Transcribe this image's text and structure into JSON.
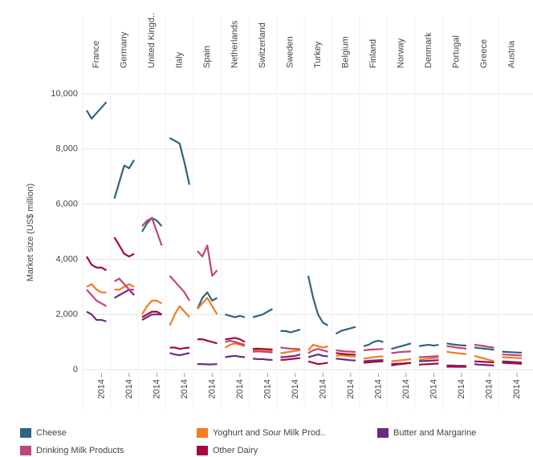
{
  "chart_data": {
    "type": "line",
    "y_label": "Market size (US$ million)",
    "categories": [
      "France",
      "Germany",
      "United Kingd..",
      "Italy",
      "Spain",
      "Netherlands",
      "Switzerland",
      "Sweden",
      "Turkey",
      "Belgium",
      "Finland",
      "Norway",
      "Denmark",
      "Portugal",
      "Greece",
      "Austria"
    ],
    "x": [
      2011,
      2012,
      2013,
      2014,
      2015
    ],
    "xlim": [
      2011,
      2015
    ],
    "xticks": [
      2014
    ],
    "ylim": [
      0,
      10000
    ],
    "yticks": [
      0,
      {
        "value": 2000,
        "label": "2,000"
      },
      {
        "value": 4000,
        "label": "4,000"
      },
      {
        "value": 6000,
        "label": "6,000"
      },
      {
        "value": 8000,
        "label": "8,000"
      },
      {
        "value": 10000,
        "label": "10,000"
      }
    ],
    "grid": true,
    "legend": "bottom",
    "series": [
      {
        "name": "Cheese",
        "color": "#2e6480",
        "values": [
          [
            9400,
            9100,
            9300,
            9500,
            9700
          ],
          [
            6200,
            6800,
            7400,
            7300,
            7600
          ],
          [
            5000,
            5300,
            5500,
            5400,
            5200
          ],
          [
            8400,
            8300,
            8200,
            7500,
            6700
          ],
          [
            2200,
            2600,
            2800,
            2500,
            2600
          ],
          [
            2000,
            1950,
            1900,
            1950,
            1900
          ],
          [
            1900,
            1950,
            2000,
            2100,
            2200
          ],
          [
            1400,
            1400,
            1350,
            1400,
            1450
          ],
          [
            3400,
            2600,
            2000,
            1700,
            1600
          ],
          [
            1300,
            1400,
            1450,
            1500,
            1550
          ],
          [
            850,
            900,
            1000,
            1050,
            1000
          ],
          [
            750,
            800,
            850,
            900,
            950
          ],
          [
            850,
            880,
            900,
            870,
            900
          ],
          [
            950,
            920,
            900,
            880,
            870
          ],
          [
            800,
            780,
            760,
            740,
            720
          ],
          [
            650,
            640,
            630,
            620,
            610
          ]
        ]
      },
      {
        "name": "Yoghurt and Sour Milk Prod..",
        "color": "#f47b20",
        "values": [
          [
            3000,
            3100,
            2900,
            2800,
            2800
          ],
          [
            2900,
            2900,
            3000,
            3100,
            3000
          ],
          [
            2000,
            2300,
            2500,
            2500,
            2400
          ],
          [
            1600,
            2000,
            2300,
            2100,
            1900
          ],
          [
            2200,
            2400,
            2600,
            2300,
            2000
          ],
          [
            800,
            900,
            950,
            900,
            850
          ],
          [
            700,
            700,
            720,
            700,
            680
          ],
          [
            600,
            620,
            650,
            680,
            700
          ],
          [
            700,
            900,
            850,
            800,
            850
          ],
          [
            500,
            520,
            500,
            480,
            470
          ],
          [
            400,
            420,
            450,
            470,
            480
          ],
          [
            300,
            320,
            340,
            360,
            380
          ],
          [
            350,
            380,
            400,
            420,
            430
          ],
          [
            650,
            620,
            600,
            580,
            560
          ],
          [
            500,
            450,
            400,
            350,
            300
          ],
          [
            450,
            440,
            430,
            420,
            410
          ]
        ]
      },
      {
        "name": "Butter and Margarine",
        "color": "#6a2c80",
        "values": [
          [
            2100,
            2000,
            1800,
            1800,
            1750
          ],
          [
            2600,
            2700,
            2800,
            2900,
            2700
          ],
          [
            1800,
            1900,
            2000,
            2000,
            2000
          ],
          [
            600,
            550,
            520,
            560,
            600
          ],
          [
            200,
            200,
            190,
            190,
            200
          ],
          [
            450,
            480,
            500,
            470,
            450
          ],
          [
            400,
            380,
            380,
            360,
            350
          ],
          [
            450,
            460,
            480,
            500,
            550
          ],
          [
            450,
            500,
            550,
            500,
            480
          ],
          [
            400,
            380,
            360,
            340,
            330
          ],
          [
            300,
            320,
            330,
            340,
            350
          ],
          [
            150,
            180,
            200,
            220,
            250
          ],
          [
            300,
            310,
            320,
            330,
            340
          ],
          [
            150,
            150,
            140,
            140,
            130
          ],
          [
            200,
            180,
            170,
            160,
            150
          ],
          [
            300,
            290,
            280,
            270,
            260
          ]
        ]
      },
      {
        "name": "Drinking Milk Products",
        "color": "#c0457a",
        "values": [
          [
            2900,
            2700,
            2500,
            2400,
            2300
          ],
          [
            3200,
            3300,
            3100,
            2900,
            2900
          ],
          [
            5200,
            5400,
            5500,
            5000,
            4500
          ],
          [
            3400,
            3200,
            3000,
            2800,
            2500
          ],
          [
            4300,
            4100,
            4500,
            3400,
            3600
          ],
          [
            1000,
            1050,
            1000,
            950,
            900
          ],
          [
            650,
            660,
            650,
            640,
            620
          ],
          [
            800,
            780,
            760,
            750,
            740
          ],
          [
            600,
            700,
            750,
            700,
            650
          ],
          [
            700,
            680,
            660,
            650,
            640
          ],
          [
            700,
            720,
            730,
            740,
            750
          ],
          [
            600,
            620,
            640,
            650,
            660
          ],
          [
            450,
            460,
            470,
            480,
            490
          ],
          [
            850,
            830,
            800,
            780,
            760
          ],
          [
            900,
            880,
            850,
            820,
            800
          ],
          [
            550,
            540,
            530,
            520,
            510
          ]
        ]
      },
      {
        "name": "Other Dairy",
        "color": "#a6093c",
        "values": [
          [
            4100,
            3800,
            3700,
            3700,
            3600
          ],
          [
            4800,
            4500,
            4200,
            4100,
            4200
          ],
          [
            1900,
            2000,
            2100,
            2100,
            2000
          ],
          [
            800,
            800,
            750,
            780,
            800
          ],
          [
            1100,
            1100,
            1050,
            1000,
            950
          ],
          [
            1100,
            1120,
            1150,
            1100,
            1000
          ],
          [
            750,
            760,
            750,
            740,
            730
          ],
          [
            350,
            360,
            380,
            400,
            420
          ],
          [
            300,
            250,
            200,
            220,
            250
          ],
          [
            600,
            580,
            560,
            550,
            540
          ],
          [
            250,
            260,
            280,
            290,
            300
          ],
          [
            200,
            210,
            220,
            230,
            240
          ],
          [
            180,
            190,
            200,
            210,
            220
          ],
          [
            100,
            110,
            100,
            100,
            100
          ],
          [
            300,
            290,
            280,
            270,
            260
          ],
          [
            250,
            240,
            230,
            220,
            210
          ]
        ]
      }
    ]
  }
}
